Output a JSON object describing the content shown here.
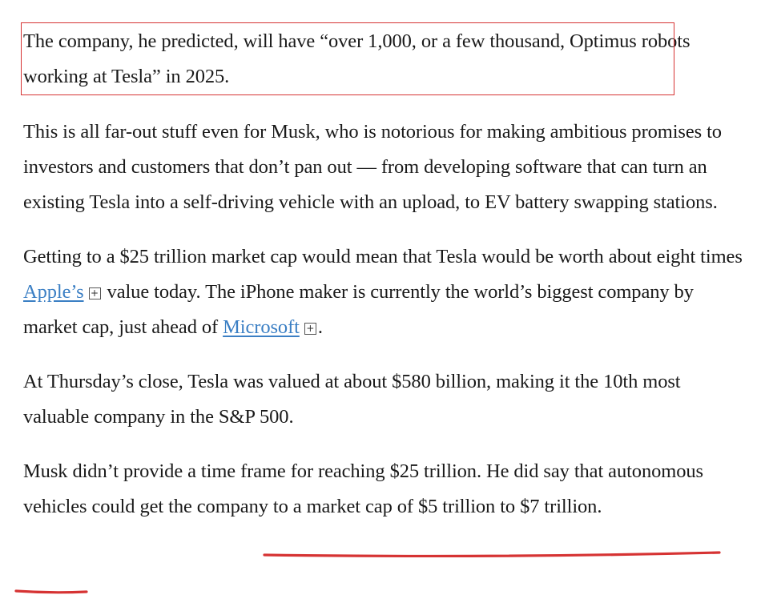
{
  "article": {
    "paragraphs": [
      {
        "text": "The company, he predicted, will have “over 1,000, or a few thousand, Optimus robots working at Tesla” in 2025."
      },
      {
        "text": "This is all far-out stuff even for Musk, who is notorious for making ambitious promises to investors and customers that don’t pan out — from developing software that can turn an existing Tesla into a self-driving vehicle with an upload, to EV battery swapping stations."
      },
      {
        "before_link1": "Getting to a $25 trillion market cap would mean that Tesla would be worth about eight times ",
        "link1": "Apple’s",
        "between_links": " value today. The iPhone maker is currently the world’s biggest company by market cap, just ahead of ",
        "link2": "Microsoft",
        "after_link2": "."
      },
      {
        "text": "At Thursday’s close, Tesla was valued at about $580 billion, making it the 10th most valuable company in the S&P 500."
      },
      {
        "text": "Musk didn’t provide a time frame for reaching $25 trillion. He did say that autonomous vehicles could get the company to a market cap of $5 trillion to $7 trillion."
      }
    ],
    "expand_icon_symbol": "+"
  },
  "annotations": {
    "color": "#d63333"
  }
}
